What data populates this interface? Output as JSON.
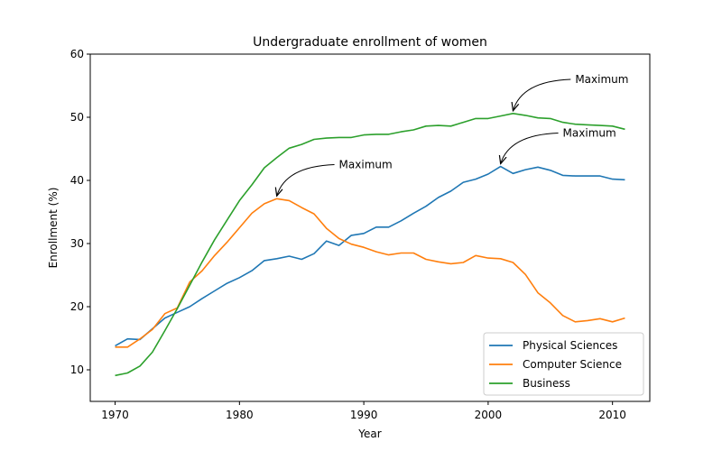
{
  "chart_data": {
    "type": "line",
    "title": "Undergraduate enrollment of women",
    "xlabel": "Year",
    "ylabel": "Enrollment (%)",
    "xlim": [
      1968,
      2013
    ],
    "ylim": [
      5,
      60
    ],
    "xticks": [
      1970,
      1980,
      1990,
      2000,
      2010
    ],
    "yticks": [
      10,
      20,
      30,
      40,
      50,
      60
    ],
    "grid": false,
    "legend_position": "lower-right",
    "x": [
      1970,
      1971,
      1972,
      1973,
      1974,
      1975,
      1976,
      1977,
      1978,
      1979,
      1980,
      1981,
      1982,
      1983,
      1984,
      1985,
      1986,
      1987,
      1988,
      1989,
      1990,
      1991,
      1992,
      1993,
      1994,
      1995,
      1996,
      1997,
      1998,
      1999,
      2000,
      2001,
      2002,
      2003,
      2004,
      2005,
      2006,
      2007,
      2008,
      2009,
      2010,
      2011
    ],
    "series": [
      {
        "name": "Physical Sciences",
        "color": "#1f77b4",
        "values": [
          13.8,
          14.9,
          14.8,
          16.5,
          18.2,
          19.1,
          20.0,
          21.3,
          22.5,
          23.7,
          24.6,
          25.7,
          27.3,
          27.6,
          28.0,
          27.5,
          28.4,
          30.4,
          29.7,
          31.3,
          31.6,
          32.6,
          32.6,
          33.6,
          34.8,
          35.9,
          37.3,
          38.3,
          39.7,
          40.2,
          41.0,
          42.2,
          41.1,
          41.7,
          42.1,
          41.6,
          40.8,
          40.7,
          40.7,
          40.7,
          40.2,
          40.1
        ]
      },
      {
        "name": "Computer Science",
        "color": "#ff7f0e",
        "values": [
          13.6,
          13.6,
          14.9,
          16.4,
          18.9,
          19.8,
          23.9,
          25.7,
          28.1,
          30.2,
          32.5,
          34.8,
          36.3,
          37.1,
          36.8,
          35.7,
          34.7,
          32.4,
          30.8,
          29.9,
          29.4,
          28.7,
          28.2,
          28.5,
          28.5,
          27.5,
          27.1,
          26.8,
          27.0,
          28.1,
          27.7,
          27.6,
          27.0,
          25.1,
          22.2,
          20.6,
          18.6,
          17.6,
          17.8,
          18.1,
          17.6,
          18.2
        ]
      },
      {
        "name": "Business",
        "color": "#2ca02c",
        "values": [
          9.1,
          9.5,
          10.6,
          12.8,
          16.2,
          19.7,
          23.4,
          27.1,
          30.6,
          33.7,
          36.8,
          39.3,
          42.0,
          43.6,
          45.1,
          45.7,
          46.5,
          46.7,
          46.8,
          46.8,
          47.2,
          47.3,
          47.3,
          47.7,
          48.0,
          48.6,
          48.7,
          48.6,
          49.2,
          49.8,
          49.8,
          50.2,
          50.6,
          50.3,
          49.9,
          49.8,
          49.2,
          48.9,
          48.8,
          48.7,
          48.6,
          48.1
        ]
      }
    ],
    "annotations": [
      {
        "text": "Maximum",
        "series": "Computer Science",
        "x": 1983,
        "y": 37.1,
        "text_x": 1988,
        "text_y": 42.5
      },
      {
        "text": "Maximum",
        "series": "Physical Sciences",
        "x": 2001,
        "y": 42.2,
        "text_x": 2006,
        "text_y": 47.5
      },
      {
        "text": "Maximum",
        "series": "Business",
        "x": 2002,
        "y": 50.6,
        "text_x": 2007,
        "text_y": 56.0
      }
    ]
  }
}
